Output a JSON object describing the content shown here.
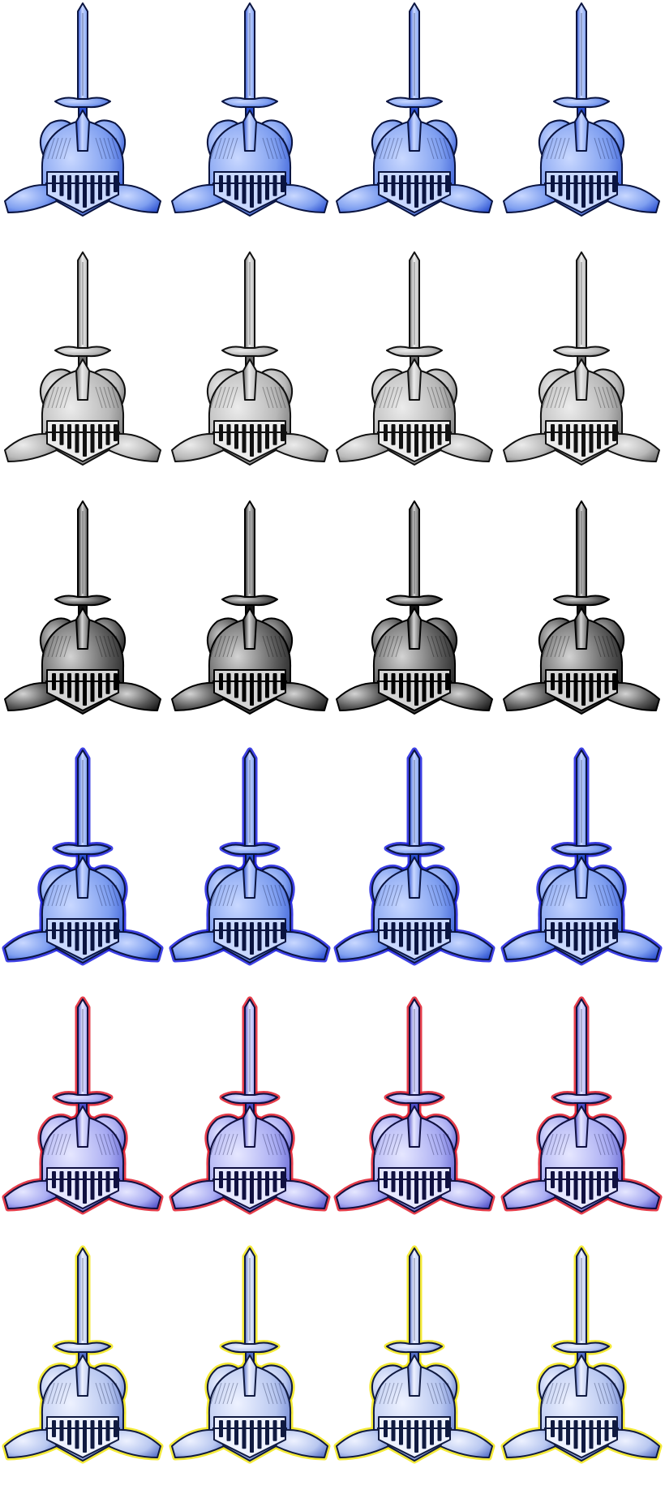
{
  "sprite_sheet": {
    "columns": 4,
    "rows": 6,
    "frames_per_row": 4,
    "variants": [
      {
        "id": "blue",
        "fill": "#7f9ff0",
        "fill_light": "#c9d8ff",
        "fill_dark": "#2a4fd0",
        "ink": "#0a1440",
        "glow": ""
      },
      {
        "id": "grey",
        "fill": "#b8b8b8",
        "fill_light": "#ececec",
        "fill_dark": "#6a6a6a",
        "ink": "#111111",
        "glow": ""
      },
      {
        "id": "dark",
        "fill": "#5a5a5a",
        "fill_light": "#d4d4d4",
        "fill_dark": "#151515",
        "ink": "#000000",
        "glow": ""
      },
      {
        "id": "blue-glow",
        "fill": "#7f9ff0",
        "fill_light": "#c9d8ff",
        "fill_dark": "#2a4fd0",
        "ink": "#0a1440",
        "glow": "#1c20e0"
      },
      {
        "id": "violet-red-glow",
        "fill": "#a9acf2",
        "fill_light": "#e6e7ff",
        "fill_dark": "#4f4fc8",
        "ink": "#101040",
        "glow": "#e01c2c"
      },
      {
        "id": "pale-yellow-glow",
        "fill": "#b8c7f0",
        "fill_light": "#eef2ff",
        "fill_dark": "#5670c8",
        "ink": "#101a40",
        "glow": "#f2e616"
      }
    ]
  }
}
